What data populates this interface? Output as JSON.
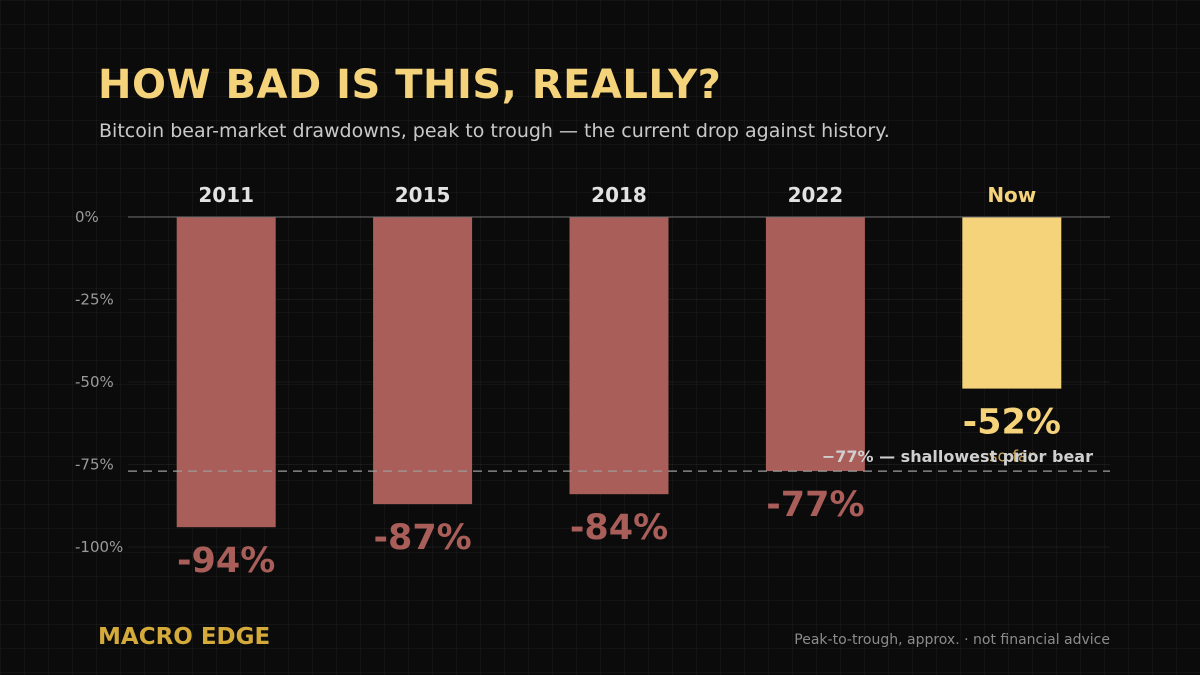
{
  "header": {
    "title": "HOW BAD IS THIS, REALLY?",
    "subtitle": "Bitcoin bear-market drawdowns, peak to trough — the current drop against history."
  },
  "footer": {
    "brand": "MACRO EDGE",
    "note": "Peak-to-trough, approx. · not financial advice"
  },
  "colors": {
    "background": "#0b0b0c",
    "title": "#f5d37a",
    "bar_past": "#a95e59",
    "bar_current": "#f5d37a",
    "brand": "#d4aa3a"
  },
  "chart_data": {
    "type": "bar",
    "categories": [
      "2011",
      "2015",
      "2018",
      "2022",
      "Now"
    ],
    "values": [
      -94,
      -87,
      -84,
      -77,
      -52
    ],
    "value_labels": [
      "-94%",
      "-87%",
      "-84%",
      "-77%",
      "-52%"
    ],
    "highlight_index": 4,
    "highlight_sublabel": "so far",
    "ylim": [
      -100,
      0
    ],
    "yticks": [
      0,
      -25,
      -50,
      -75,
      -100
    ],
    "ytick_labels": [
      "0%",
      "-25%",
      "-50%",
      "-75%",
      "-100%"
    ],
    "grid": true,
    "reference_line": {
      "value": -77,
      "label": "−77% — shallowest prior bear",
      "style": "dashed"
    }
  }
}
